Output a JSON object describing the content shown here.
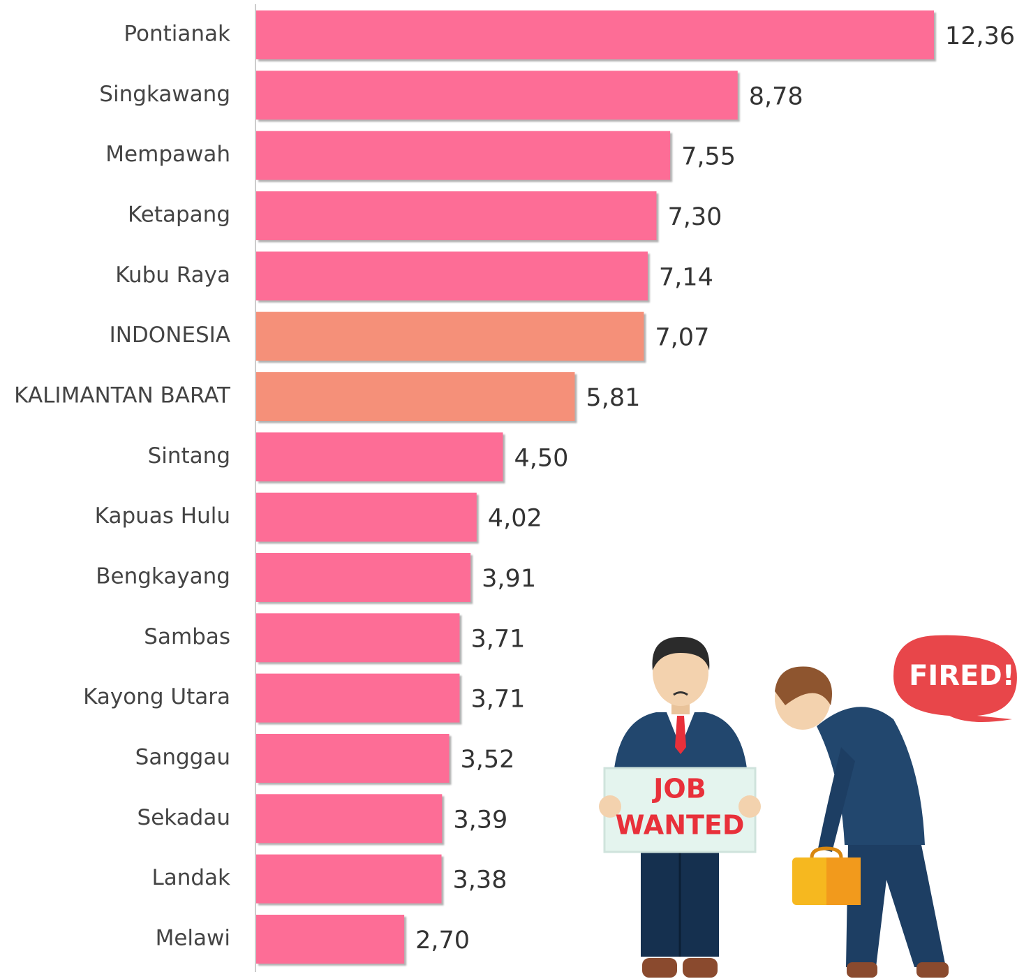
{
  "chart_data": {
    "type": "hbar",
    "categories": [
      "Pontianak",
      "Singkawang",
      "Mempawah",
      "Ketapang",
      "Kubu Raya",
      "INDONESIA",
      "KALIMANTAN BARAT",
      "Sintang",
      "Kapuas Hulu",
      "Bengkayang",
      "Sambas",
      "Kayong Utara",
      "Sanggau",
      "Sekadau",
      "Landak",
      "Melawi"
    ],
    "values": [
      12.36,
      8.78,
      7.55,
      7.3,
      7.14,
      7.07,
      5.81,
      4.5,
      4.02,
      3.91,
      3.71,
      3.71,
      3.52,
      3.39,
      3.38,
      2.7
    ],
    "value_labels": [
      "12,36",
      "8,78",
      "7,55",
      "7,30",
      "7,14",
      "7,07",
      "5,81",
      "4,50",
      "4,02",
      "3,91",
      "3,71",
      "3,71",
      "3,52",
      "3,39",
      "3,38",
      "2,70"
    ],
    "colors": [
      "#fd6d96",
      "#fd6d96",
      "#fd6d96",
      "#fd6d96",
      "#fd6d96",
      "#f59079",
      "#f59079",
      "#fd6d96",
      "#fd6d96",
      "#fd6d96",
      "#fd6d96",
      "#fd6d96",
      "#fd6d96",
      "#fd6d96",
      "#fd6d96",
      "#fd6d96"
    ],
    "annotations": {
      "sign": [
        "JOB",
        "WANTED"
      ],
      "bubble": "FIRED!"
    }
  }
}
